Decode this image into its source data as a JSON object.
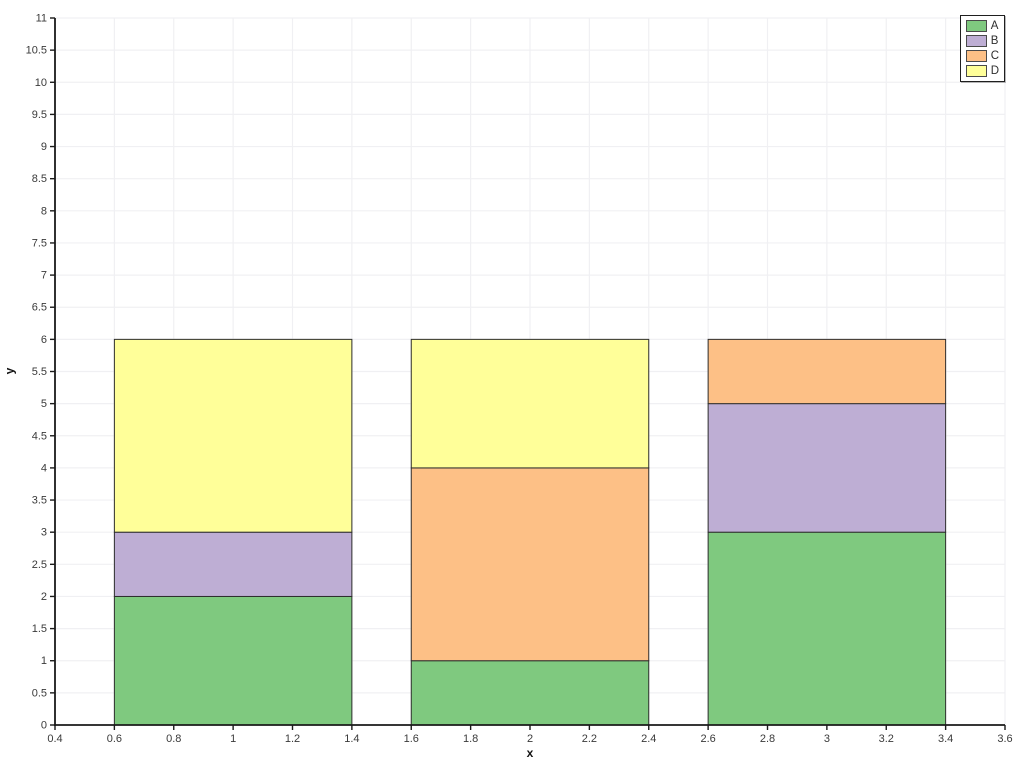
{
  "figure": {
    "background": "#ffffff"
  },
  "chart_data": {
    "type": "bar",
    "stacked": true,
    "title": "",
    "xlabel": "x",
    "ylabel": "y",
    "x": [
      1,
      2,
      3
    ],
    "bar_width": 0.8,
    "categories_note": "three stacked bars centered at x=1,2,3; each stack totals 6",
    "series": [
      {
        "name": "A",
        "color": "#7fc97f",
        "values": [
          2,
          1,
          3
        ]
      },
      {
        "name": "B",
        "color": "#beaed4",
        "values": [
          1,
          0,
          2
        ]
      },
      {
        "name": "C",
        "color": "#fdc086",
        "values": [
          0,
          3,
          1
        ]
      },
      {
        "name": "D",
        "color": "#ffff99",
        "values": [
          3,
          2,
          0
        ]
      }
    ],
    "xlim": [
      0.4,
      3.6
    ],
    "ylim": [
      0,
      11
    ],
    "x_ticks": [
      0.4,
      0.6,
      0.8,
      1,
      1.2,
      1.4,
      1.6,
      1.8,
      2,
      2.2,
      2.4,
      2.6,
      2.8,
      3,
      3.2,
      3.4,
      3.6
    ],
    "y_ticks": [
      0,
      0.5,
      1,
      1.5,
      2,
      2.5,
      3,
      3.5,
      4,
      4.5,
      5,
      5.5,
      6,
      6.5,
      7,
      7.5,
      8,
      8.5,
      9,
      9.5,
      10,
      10.5,
      11
    ],
    "grid": true,
    "legend": {
      "position": "top-right",
      "entries": [
        "A",
        "B",
        "C",
        "D"
      ]
    },
    "styles": {
      "bar_edge_color": "#2e2e2e",
      "grid_color": "#f0f0f3",
      "axis_color": "#1a1a1a",
      "tick_label_color": "#3a3a3a"
    }
  }
}
